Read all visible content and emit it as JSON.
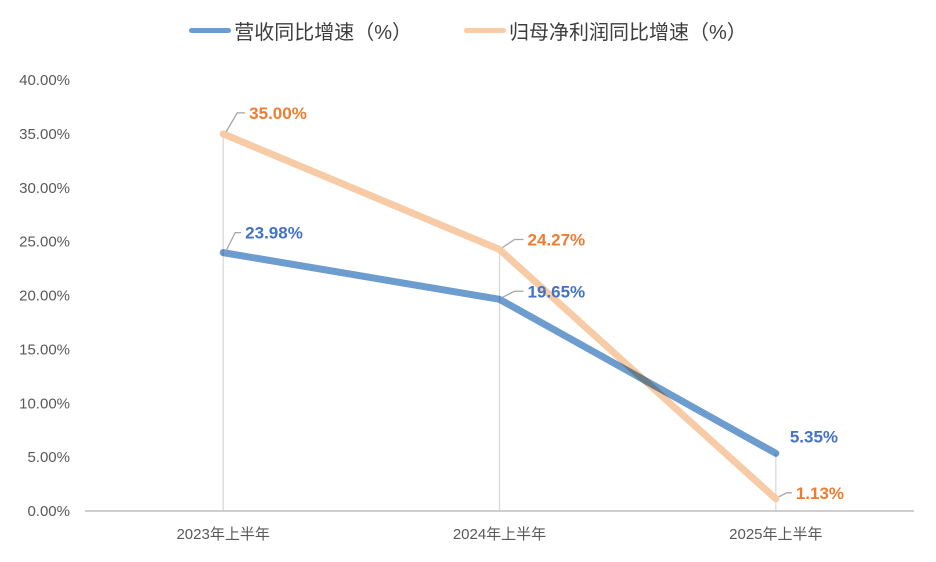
{
  "chart_data": {
    "type": "line",
    "title": "",
    "categories": [
      "2023年上半年",
      "2024年上半年",
      "2025年上半年"
    ],
    "series": [
      {
        "name": "营收同比增速（%）",
        "values": [
          23.98,
          19.65,
          5.35
        ],
        "labels": [
          "23.98%",
          "19.65%",
          "5.35%"
        ],
        "line_color": "#6D9CCF",
        "label_color": "#4472C4"
      },
      {
        "name": "归母净利润同比增速（%）",
        "values": [
          35.0,
          24.27,
          1.13
        ],
        "labels": [
          "35.00%",
          "24.27%",
          "1.13%"
        ],
        "line_color": "#F7CBA6",
        "label_color": "#ED7D31"
      }
    ],
    "y_ticks": [
      {
        "label": "40.00%",
        "value": 40
      },
      {
        "label": "35.00%",
        "value": 35
      },
      {
        "label": "30.00%",
        "value": 30
      },
      {
        "label": "25.00%",
        "value": 25
      },
      {
        "label": "20.00%",
        "value": 20
      },
      {
        "label": "15.00%",
        "value": 15
      },
      {
        "label": "10.00%",
        "value": 10
      },
      {
        "label": "5.00%",
        "value": 5
      },
      {
        "label": "0.00%",
        "value": 0
      }
    ],
    "ylim": [
      0,
      40
    ],
    "xlabel": "",
    "ylabel": "",
    "legend_position": "top",
    "grid": "category droplines only",
    "colors": {
      "axis_line": "#BFBFBF",
      "dropline": "#D6D6D6",
      "leader_line": "#A6A6A6",
      "tick_text": "#595959",
      "legend_text": "#3D3D3D"
    }
  }
}
